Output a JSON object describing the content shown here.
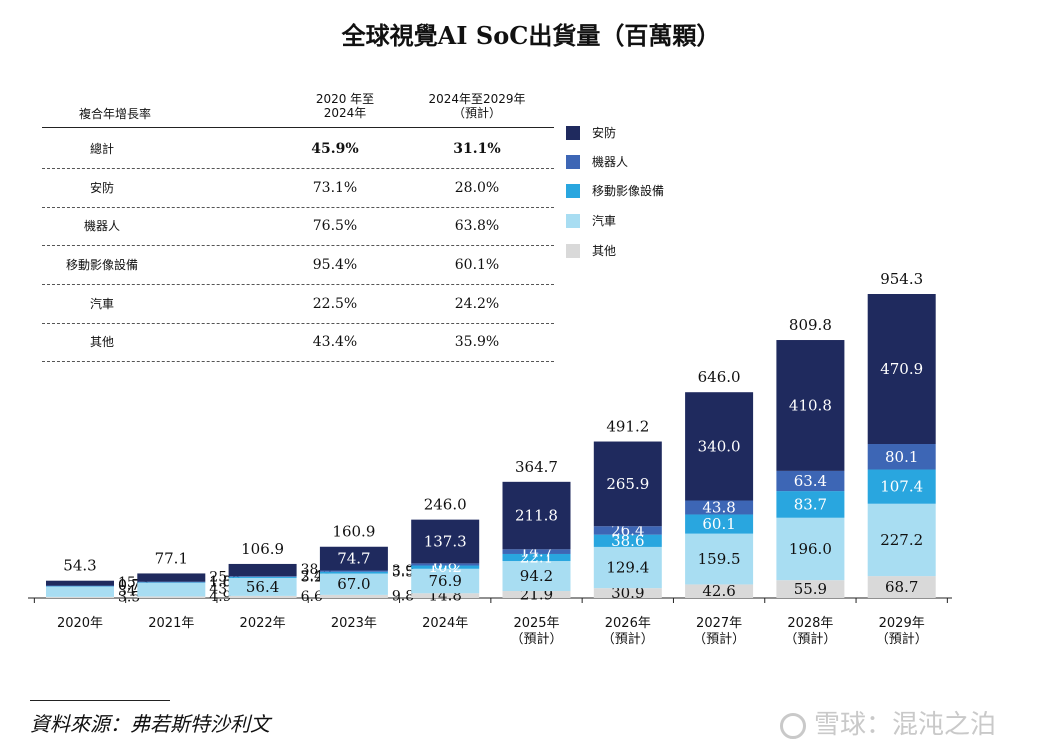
{
  "title": "全球視覺AI SoC出貨量（百萬顆）",
  "source": "資料來源：弗若斯特沙利文",
  "watermark": "雪球：混沌之泊",
  "colors": {
    "security": "#1f2a5e",
    "robot": "#3d66b5",
    "mobile": "#29a6df",
    "auto": "#a8ddf2",
    "other": "#d9d9d9"
  },
  "cagr_table": {
    "header_label": "複合年增長率",
    "col1_header": [
      "2020 年至",
      "2024年"
    ],
    "col2_header": [
      "2024年至2029年",
      "（預計）"
    ],
    "rows": [
      {
        "name": "總計",
        "v1": "45.9%",
        "v2": "31.1%",
        "bold": true
      },
      {
        "name": "安防",
        "v1": "73.1%",
        "v2": "28.0%"
      },
      {
        "name": "機器人",
        "v1": "76.5%",
        "v2": "63.8%"
      },
      {
        "name": "移動影像設備",
        "v1": "95.4%",
        "v2": "60.1%"
      },
      {
        "name": "汽車",
        "v1": "22.5%",
        "v2": "24.2%"
      },
      {
        "name": "其他",
        "v1": "43.4%",
        "v2": "35.9%"
      }
    ]
  },
  "legend": [
    {
      "key": "security",
      "label": "安防"
    },
    {
      "key": "robot",
      "label": "機器人"
    },
    {
      "key": "mobile",
      "label": "移動影像設備"
    },
    {
      "key": "auto",
      "label": "汽車"
    },
    {
      "key": "other",
      "label": "其他"
    }
  ],
  "chart_data": {
    "type": "bar",
    "stacked": true,
    "title": "全球視覺AI SoC出貨量（百萬顆）",
    "categories": [
      "2020年",
      "2021年",
      "2022年",
      "2023年",
      "2024年",
      "2025年（預計）",
      "2026年（預計）",
      "2027年（預計）",
      "2028年（預計）",
      "2029年（預計）"
    ],
    "category_lines": [
      [
        "2020年"
      ],
      [
        "2021年"
      ],
      [
        "2022年"
      ],
      [
        "2023年"
      ],
      [
        "2024年"
      ],
      [
        "2025年",
        "（預計）"
      ],
      [
        "2026年",
        "（預計）"
      ],
      [
        "2027年",
        "（預計）"
      ],
      [
        "2028年",
        "（預計）"
      ],
      [
        "2029年",
        "（預計）"
      ]
    ],
    "series": [
      {
        "name": "其他",
        "key": "other",
        "values": [
          3.5,
          4.9,
          6.6,
          9.8,
          14.8,
          21.9,
          30.9,
          42.6,
          55.9,
          68.7
        ],
        "labels": [
          "3.5",
          "4.9",
          "6.6",
          "9.8",
          "14.8",
          "21.9",
          "30.9",
          "42.6",
          "55.9",
          "68.7"
        ]
      },
      {
        "name": "汽車",
        "key": "auto",
        "values": [
          34.1,
          43.5,
          56.4,
          67.0,
          76.9,
          94.2,
          129.4,
          159.5,
          196.0,
          227.2
        ],
        "labels": [
          "34.1",
          "43.5",
          "56.4",
          "67.0",
          "76.9",
          "94.2",
          "129.4",
          "159.5",
          "196.0",
          "227.2"
        ]
      },
      {
        "name": "移動影像設備",
        "key": "mobile",
        "values": [
          0.7,
          1.6,
          3.2,
          5.5,
          10.2,
          22.1,
          38.6,
          60.1,
          83.7,
          107.4
        ],
        "labels": [
          "0.7",
          "1.6",
          "3.2",
          "5.5",
          "10.2",
          "22.1",
          "38.6",
          "60.1",
          "83.7",
          "107.4"
        ]
      },
      {
        "name": "機器人",
        "key": "robot",
        "values": [
          0.7,
          1.3,
          2.4,
          3.9,
          6.8,
          14.7,
          26.4,
          43.8,
          63.4,
          80.1
        ],
        "labels": [
          "0.7",
          "1.3",
          "2.4",
          "3.9",
          "6.8",
          "14.7",
          "26.4",
          "43.8",
          "63.4",
          "80.1"
        ]
      },
      {
        "name": "安防",
        "key": "security",
        "values": [
          15.3,
          25.8,
          38.3,
          74.7,
          137.3,
          211.8,
          265.9,
          340.0,
          410.8,
          470.9
        ],
        "labels": [
          "15.3",
          "25.8",
          "38.3",
          "74.7",
          "137.3",
          "211.8",
          "265.9",
          "340.0",
          "410.8",
          "470.9"
        ]
      }
    ],
    "totals": [
      54.3,
      77.1,
      106.9,
      160.9,
      246.0,
      364.7,
      491.2,
      646.0,
      809.8,
      954.3
    ],
    "total_labels": [
      "54.3",
      "77.1",
      "106.9",
      "160.9",
      "246.0",
      "364.7",
      "491.2",
      "646.0",
      "809.8",
      "954.3"
    ],
    "xlabel": "",
    "ylabel": "",
    "ylim": [
      0,
      1000
    ],
    "grid": false,
    "legend_position": "top-right"
  }
}
